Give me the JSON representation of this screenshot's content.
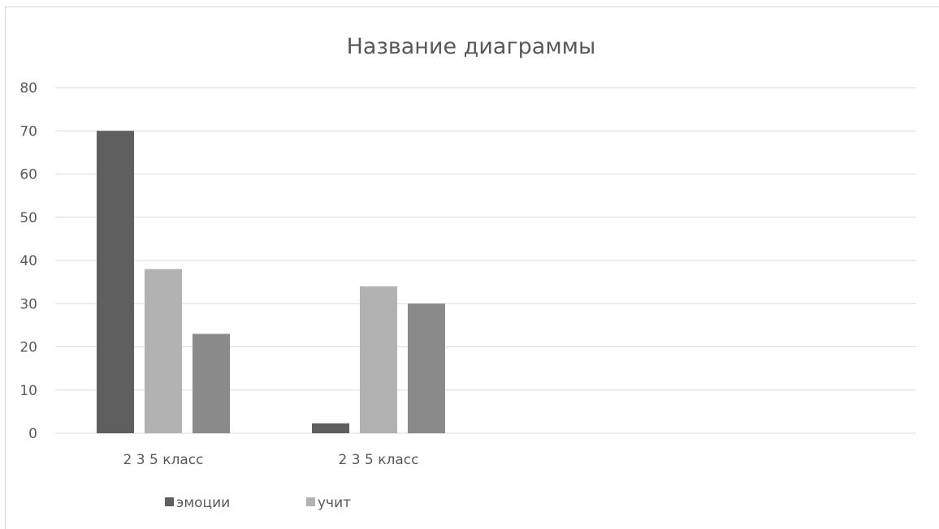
{
  "chart_data": {
    "type": "bar",
    "title": "Название диаграммы",
    "categories": [
      "2 3 5 класс",
      "2 3 5 класс"
    ],
    "series": [
      {
        "name": "эмоции",
        "values": [
          70,
          2.3
        ],
        "color": "#5f5f5f"
      },
      {
        "name": "учит",
        "values": [
          38,
          34
        ],
        "color": "#b2b2b2"
      },
      {
        "values": [
          23,
          30
        ],
        "color": "#8a8a8a"
      }
    ],
    "ylim": [
      0,
      80
    ],
    "yticks": [
      0,
      10,
      20,
      30,
      40,
      50,
      60,
      70,
      80
    ],
    "grid": true,
    "legend_position": "bottom"
  }
}
